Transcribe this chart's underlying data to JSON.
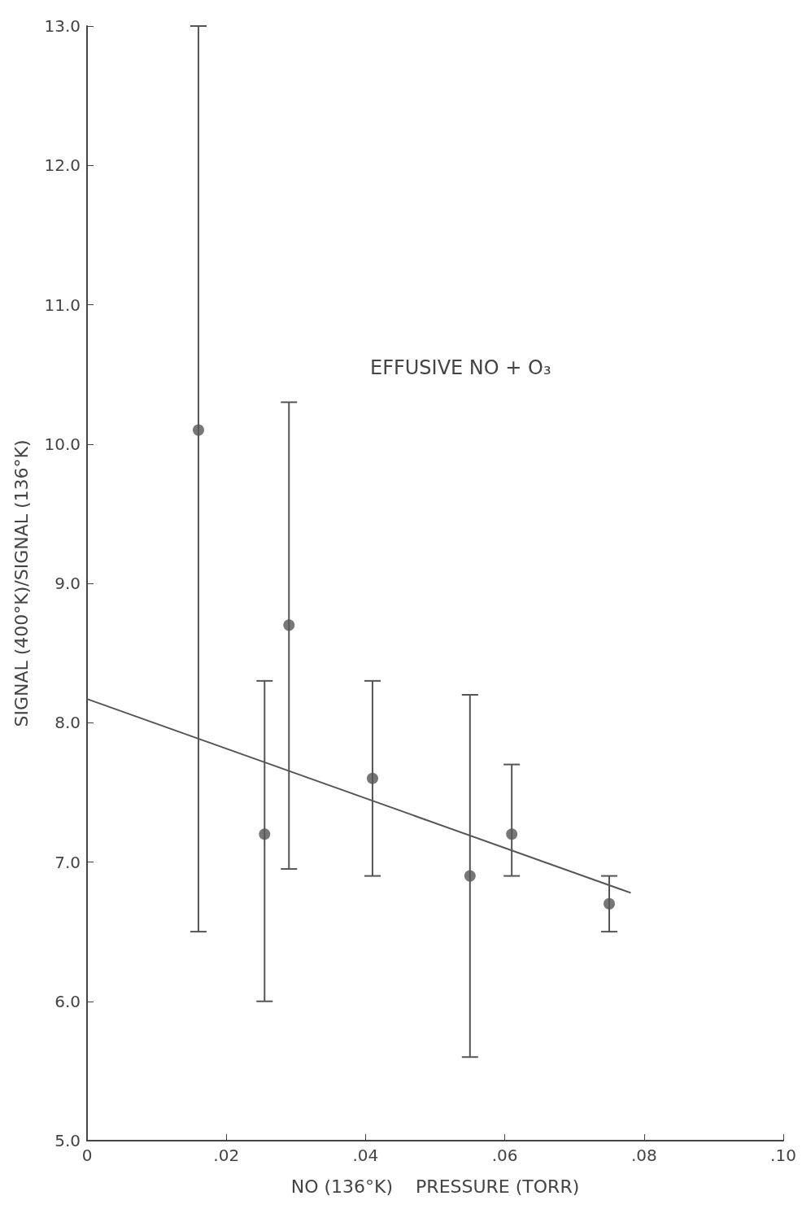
{
  "chart_data": {
    "type": "scatter",
    "xlabel": "NO (136°K)    PRESSURE (TORR)",
    "ylabel": "SIGNAL (400°K)/SIGNAL (136°K)",
    "annotations": [
      "EFFUSIVE NO + O₃"
    ],
    "xlim": [
      0,
      0.1
    ],
    "xticks": [
      {
        "value": 0,
        "label": "0"
      },
      {
        "value": 0.02,
        "label": ".02"
      },
      {
        "value": 0.04,
        "label": ".04"
      },
      {
        "value": 0.06,
        "label": ".06"
      },
      {
        "value": 0.08,
        "label": ".08"
      },
      {
        "value": 0.1,
        "label": ".10"
      }
    ],
    "ylim": [
      5,
      13
    ],
    "yticks": [
      {
        "value": 5,
        "label": "5.0"
      },
      {
        "value": 6,
        "label": "6.0"
      },
      {
        "value": 7,
        "label": "7.0"
      },
      {
        "value": 8,
        "label": "8.0"
      },
      {
        "value": 9,
        "label": "9.0"
      },
      {
        "value": 10,
        "label": "10.0"
      },
      {
        "value": 11,
        "label": "11.0"
      },
      {
        "value": 12,
        "label": "12.0"
      },
      {
        "value": 13,
        "label": "13.0"
      }
    ],
    "grid": false,
    "series": [
      {
        "color": "#555555",
        "marker": "circle",
        "x": [
          0.016,
          0.0255,
          0.029,
          0.041,
          0.055,
          0.061,
          0.075
        ],
        "values": [
          10.1,
          7.2,
          8.7,
          7.6,
          6.9,
          7.2,
          6.7
        ],
        "errors": [
          [
            6.5,
            13.0
          ],
          [
            6.0,
            8.3
          ],
          [
            6.95,
            10.3
          ],
          [
            6.9,
            8.3
          ],
          [
            5.6,
            8.2
          ],
          [
            6.9,
            7.7
          ],
          [
            6.5,
            6.9
          ]
        ]
      },
      {
        "type": "line",
        "color": "#555555",
        "marker": "none",
        "line_style": "solid",
        "x": [
          0,
          0.078
        ],
        "values": [
          8.17,
          6.78
        ]
      }
    ]
  }
}
